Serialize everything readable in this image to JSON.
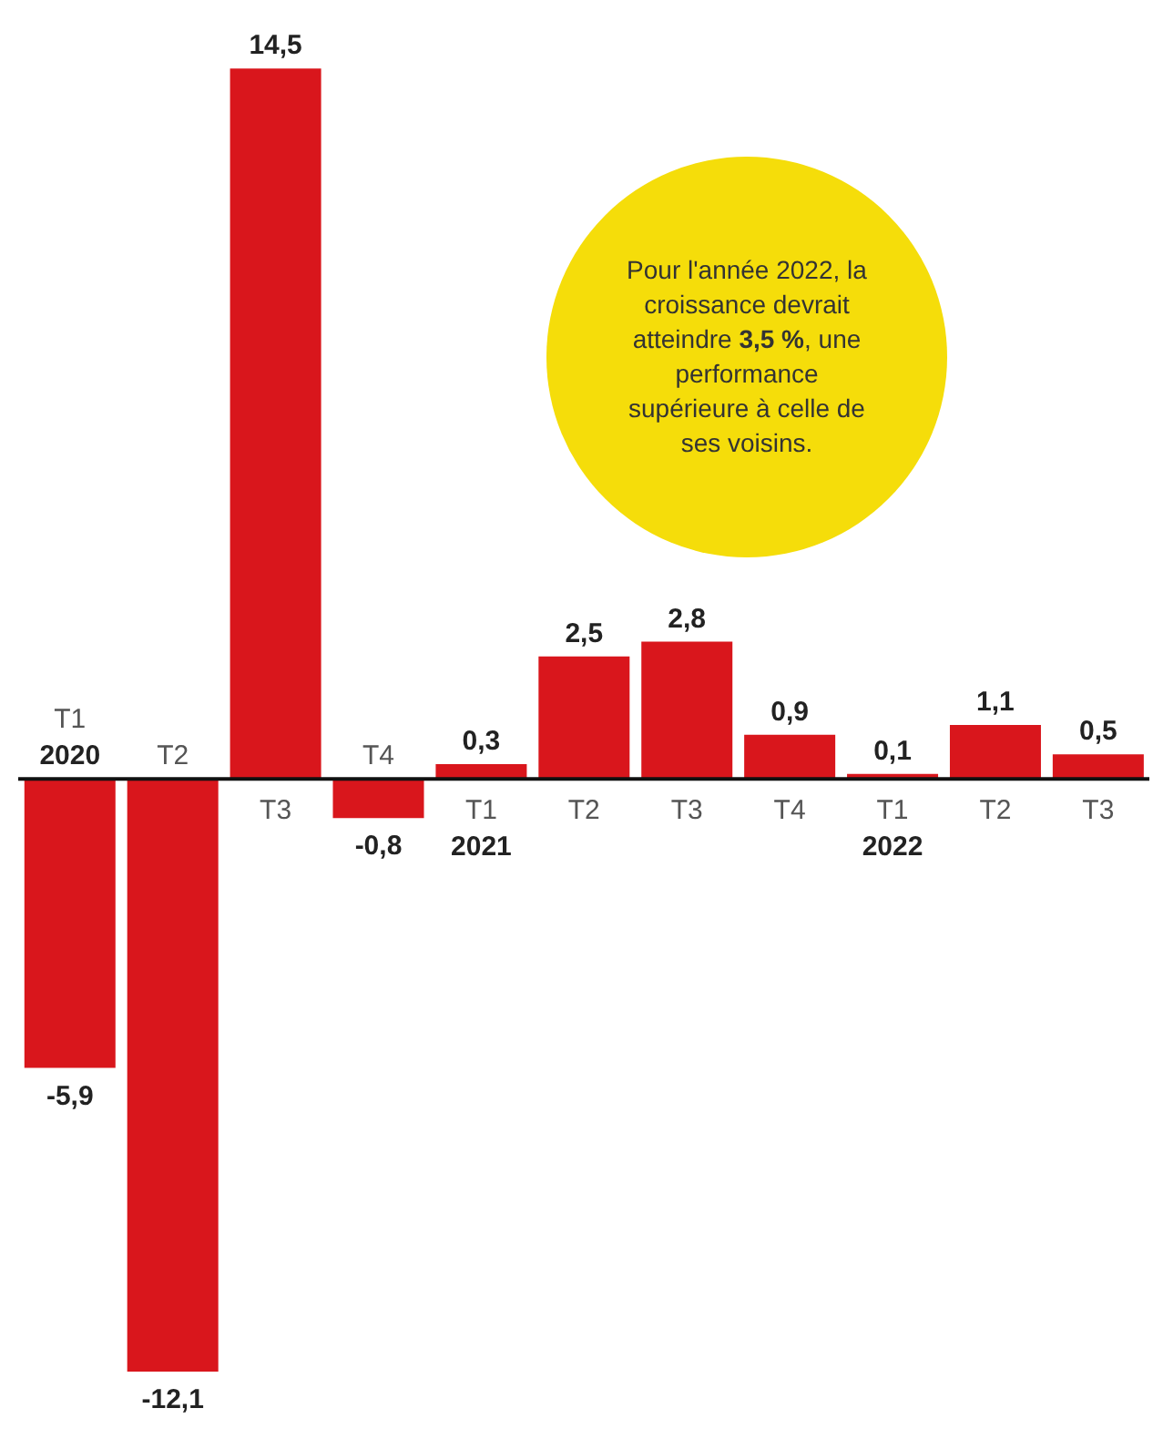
{
  "chart_data": {
    "type": "bar",
    "categories": [
      "T1\n2020",
      "T2",
      "T3",
      "T4",
      "T1\n2021",
      "T2",
      "T3",
      "T4",
      "T1\n2022",
      "T2",
      "T3"
    ],
    "values": [
      -5.9,
      -12.1,
      14.5,
      -0.8,
      0.3,
      2.5,
      2.8,
      0.9,
      0.1,
      1.1,
      0.5
    ],
    "color": "#d9161c",
    "value_labels": [
      "-5,9",
      "-12,1",
      "14,5",
      "-0,8",
      "0,3",
      "2,5",
      "2,8",
      "0,9",
      "0,1",
      "1,1",
      "0,5"
    ],
    "annotations": [
      "Pour l'année 2022, la croissance devrait atteindre 3,5 %, une performance supérieure à celle de ses voisins."
    ]
  }
}
